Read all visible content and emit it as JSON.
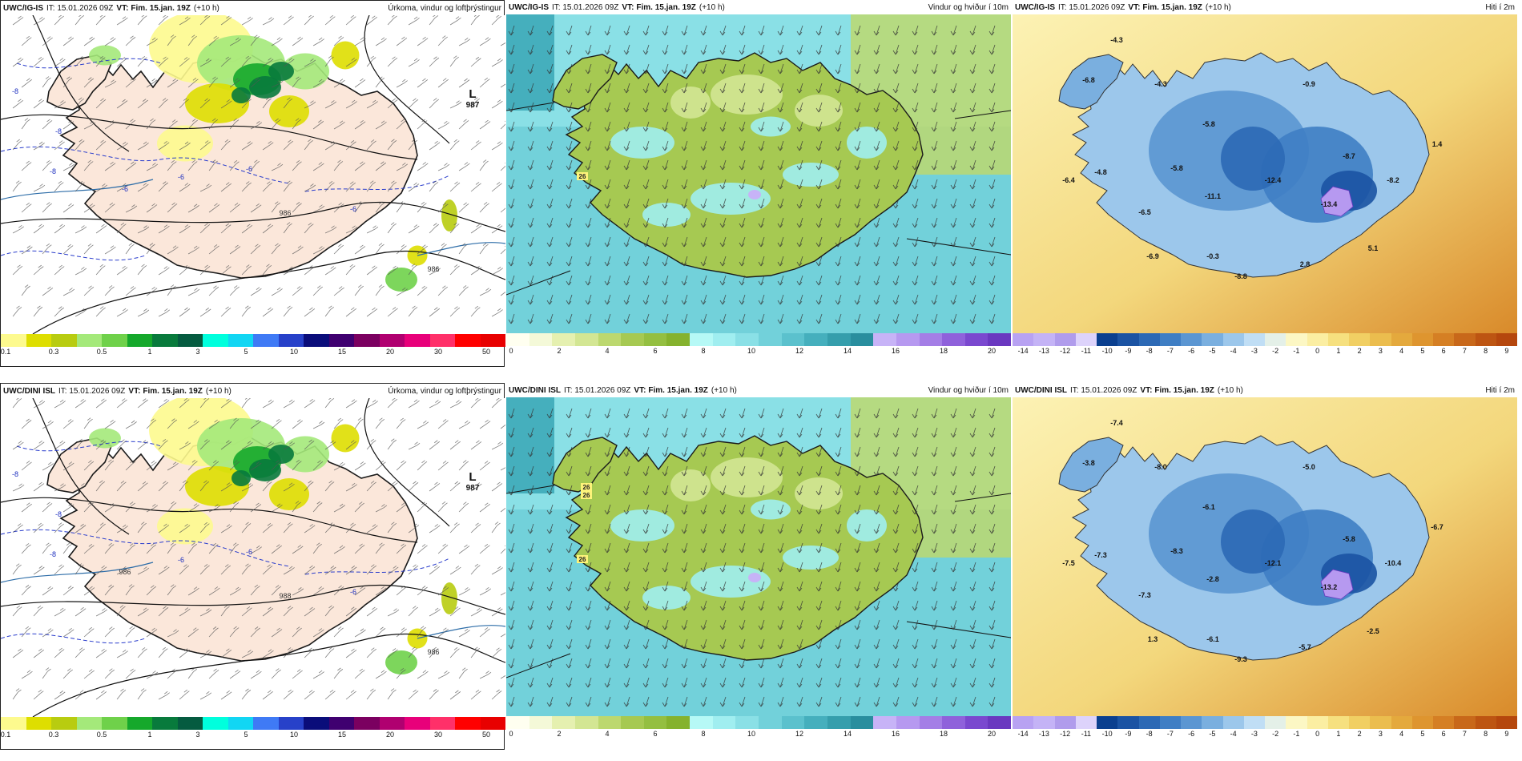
{
  "panels": [
    {
      "id": "p1",
      "model": "UWC/IG-IS",
      "it": "IT: 15.01.2026 09Z",
      "vt_label": "VT:",
      "vt": "Fim. 15.jan. 19Z",
      "lead": "(+10 h)",
      "title": "Úrkoma, vindur og loftþrýstingur",
      "legend": "precip",
      "annotations": [
        {
          "text": "L",
          "kind": "low"
        },
        {
          "text": "987",
          "kind": "low-value"
        },
        {
          "text": "-8",
          "kind": "isotherm"
        },
        {
          "text": "-8",
          "kind": "isotherm"
        },
        {
          "text": "-8",
          "kind": "isotherm"
        },
        {
          "text": "-6",
          "kind": "isotherm"
        },
        {
          "text": "-6",
          "kind": "isotherm"
        },
        {
          "text": "-6",
          "kind": "isotherm"
        },
        {
          "text": "-6",
          "kind": "isotherm"
        },
        {
          "text": "986",
          "kind": "isobar"
        },
        {
          "text": "986",
          "kind": "isobar"
        }
      ]
    },
    {
      "id": "p2",
      "model": "UWC/IG-IS",
      "it": "IT: 15.01.2026 09Z",
      "vt_label": "VT:",
      "vt": "Fim. 15.jan. 19Z",
      "lead": "(+10 h)",
      "title": "Vindur og hviður í 10m",
      "legend": "wind",
      "annotations": [
        {
          "text": "26",
          "kind": "gust"
        }
      ]
    },
    {
      "id": "p3",
      "model": "UWC/IG-IS",
      "it": "IT: 15.01.2026 09Z",
      "vt_label": "VT:",
      "vt": "Fim. 15.jan. 19Z",
      "lead": "(+10 h)",
      "title": "Hiti í 2m",
      "legend": "temp",
      "annotations": [
        {
          "text": "-4.3",
          "kind": "temp"
        },
        {
          "text": "-6.8",
          "kind": "temp"
        },
        {
          "text": "-4.3",
          "kind": "temp"
        },
        {
          "text": "-0.9",
          "kind": "temp"
        },
        {
          "text": "-5.8",
          "kind": "temp"
        },
        {
          "text": "-4.8",
          "kind": "temp"
        },
        {
          "text": "-5.8",
          "kind": "temp"
        },
        {
          "text": "-8.7",
          "kind": "temp"
        },
        {
          "text": "1.4",
          "kind": "temp"
        },
        {
          "text": "-6.4",
          "kind": "temp"
        },
        {
          "text": "-11.1",
          "kind": "temp"
        },
        {
          "text": "-12.4",
          "kind": "temp"
        },
        {
          "text": "-13.4",
          "kind": "temp"
        },
        {
          "text": "-8.2",
          "kind": "temp"
        },
        {
          "text": "-6.5",
          "kind": "temp"
        },
        {
          "text": "-6.9",
          "kind": "temp"
        },
        {
          "text": "-0.3",
          "kind": "temp"
        },
        {
          "text": "2.8",
          "kind": "temp"
        },
        {
          "text": "5.1",
          "kind": "temp"
        },
        {
          "text": "-8.8",
          "kind": "temp"
        }
      ]
    },
    {
      "id": "p4",
      "model": "UWC/DINI ISL",
      "it": "IT: 15.01.2026 09Z",
      "vt_label": "VT:",
      "vt": "Fim. 15.jan. 19Z",
      "lead": "(+10 h)",
      "title": "Úrkoma, vindur og loftþrýstingur",
      "legend": "precip",
      "annotations": [
        {
          "text": "L",
          "kind": "low"
        },
        {
          "text": "987",
          "kind": "low-value"
        },
        {
          "text": "-8",
          "kind": "isotherm"
        },
        {
          "text": "-8",
          "kind": "isotherm"
        },
        {
          "text": "-8",
          "kind": "isotherm"
        },
        {
          "text": "-6",
          "kind": "isotherm"
        },
        {
          "text": "-6",
          "kind": "isotherm"
        },
        {
          "text": "-6",
          "kind": "isotherm"
        },
        {
          "text": "986",
          "kind": "isobar"
        },
        {
          "text": "988",
          "kind": "isobar"
        },
        {
          "text": "986",
          "kind": "isobar"
        }
      ]
    },
    {
      "id": "p5",
      "model": "UWC/DINI ISL",
      "it": "IT: 15.01.2026 09Z",
      "vt_label": "VT:",
      "vt": "Fim. 15.jan. 19Z",
      "lead": "(+10 h)",
      "title": "Vindur og hviður í 10m",
      "legend": "wind",
      "annotations": [
        {
          "text": "26",
          "kind": "gust"
        },
        {
          "text": "26",
          "kind": "gust"
        },
        {
          "text": "26",
          "kind": "gust"
        }
      ]
    },
    {
      "id": "p6",
      "model": "UWC/DINI ISL",
      "it": "IT: 15.01.2026 09Z",
      "vt_label": "VT:",
      "vt": "Fim. 15.jan. 19Z",
      "lead": "(+10 h)",
      "title": "Hiti í 2m",
      "legend": "temp",
      "annotations": [
        {
          "text": "-7.4",
          "kind": "temp"
        },
        {
          "text": "-3.8",
          "kind": "temp"
        },
        {
          "text": "-8.0",
          "kind": "temp"
        },
        {
          "text": "-5.0",
          "kind": "temp"
        },
        {
          "text": "-6.1",
          "kind": "temp"
        },
        {
          "text": "-7.3",
          "kind": "temp"
        },
        {
          "text": "-8.3",
          "kind": "temp"
        },
        {
          "text": "-5.8",
          "kind": "temp"
        },
        {
          "text": "-6.7",
          "kind": "temp"
        },
        {
          "text": "-7.5",
          "kind": "temp"
        },
        {
          "text": "-2.8",
          "kind": "temp"
        },
        {
          "text": "-12.1",
          "kind": "temp"
        },
        {
          "text": "-13.2",
          "kind": "temp"
        },
        {
          "text": "-10.4",
          "kind": "temp"
        },
        {
          "text": "-7.3",
          "kind": "temp"
        },
        {
          "text": "1.3",
          "kind": "temp"
        },
        {
          "text": "-6.1",
          "kind": "temp"
        },
        {
          "text": "-5.7",
          "kind": "temp"
        },
        {
          "text": "-2.5",
          "kind": "temp"
        },
        {
          "text": "-9.3",
          "kind": "temp"
        }
      ]
    }
  ],
  "legends": {
    "precip": {
      "colors": [
        "#fdfa8e",
        "#dede00",
        "#b8cc10",
        "#a4e97a",
        "#6fd14a",
        "#15a82b",
        "#087a3c",
        "#055b40",
        "#00ffdd",
        "#11d6f3",
        "#3f7af5",
        "#2741c9",
        "#0a0d7a",
        "#3f0070",
        "#7b0060",
        "#b00070",
        "#e8007a",
        "#ff3069",
        "#ff0000",
        "#e80000"
      ],
      "labels": [
        "0.1",
        "0.3",
        "0.5",
        "1",
        "3",
        "5",
        "10",
        "15",
        "20",
        "30",
        "50"
      ]
    },
    "wind": {
      "colors": [
        "#fffff0",
        "#f4f9d8",
        "#e5f0b0",
        "#d3e693",
        "#bcd86f",
        "#a6c952",
        "#94bf41",
        "#85b22e",
        "#b6f9f6",
        "#a0eef0",
        "#8ae0e6",
        "#72d1da",
        "#5bc1cd",
        "#45afbd",
        "#359eac",
        "#298e9e",
        "#c7b3f7",
        "#b699f0",
        "#a47ee6",
        "#8f61db",
        "#7a48cf",
        "#6a38c0"
      ],
      "labels": [
        "0",
        "2",
        "4",
        "6",
        "8",
        "10",
        "12",
        "14",
        "16",
        "18",
        "20"
      ]
    },
    "temp": {
      "colors": [
        "#b8a2f2",
        "#c4b3f6",
        "#b09cec",
        "#ddd3fb",
        "#0a3f8f",
        "#1b53a3",
        "#2c69b5",
        "#3f7ec4",
        "#5b96d2",
        "#7aafdf",
        "#9cc7eb",
        "#c0def5",
        "#e4f0e8",
        "#fcf7c4",
        "#fbeea2",
        "#f6e07f",
        "#f1cf63",
        "#ebbd4e",
        "#e4a93d",
        "#de952f",
        "#d57f24",
        "#c8681a",
        "#bd5512",
        "#b5470d"
      ],
      "labels": [
        "-14",
        "-13",
        "-12",
        "-11",
        "-10",
        "-9",
        "-8",
        "-7",
        "-6",
        "-5",
        "-4",
        "-3",
        "-2",
        "-1",
        "0",
        "1",
        "2",
        "3",
        "4",
        "5",
        "6",
        "7",
        "8",
        "9"
      ]
    }
  }
}
